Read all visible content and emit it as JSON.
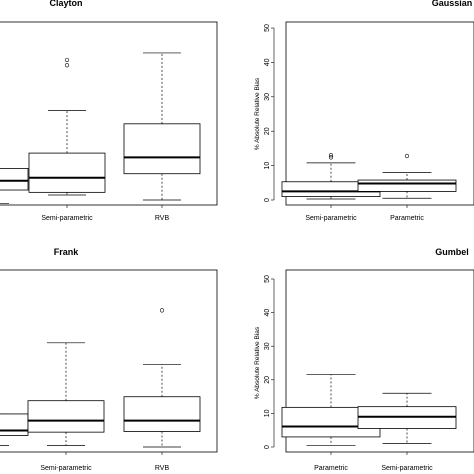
{
  "chart_data": [
    {
      "type": "box",
      "title": "Clayton",
      "ylabel": "",
      "ylim": [
        0,
        55
      ],
      "show_y_axis": false,
      "categories": [
        "",
        "Semi-parametric",
        "RVB"
      ],
      "boxes": [
        {
          "low": 0.5,
          "q1": 4.5,
          "median": 7.3,
          "q3": 11.0,
          "high": 11.0,
          "outliers": []
        },
        {
          "low": 3.0,
          "q1": 3.8,
          "median": 8.2,
          "q3": 15.6,
          "high": 28.4,
          "outliers": [
            42.0,
            43.6
          ]
        },
        {
          "low": 1.5,
          "q1": 9.4,
          "median": 14.3,
          "q3": 24.4,
          "high": 45.7,
          "outliers": []
        }
      ]
    },
    {
      "type": "box",
      "title": "Gaussian",
      "ylabel": "% Absolute Relative Bias",
      "ylim": [
        0,
        50
      ],
      "yticks": [
        0,
        10,
        20,
        30,
        40,
        50
      ],
      "show_y_axis": true,
      "categories": [
        "Semi-parametric",
        "Parametric"
      ],
      "boxes": [
        {
          "low": 0.3,
          "q1": 1.0,
          "median": 2.5,
          "q3": 5.3,
          "high": 10.8,
          "outliers": [
            12.4,
            13.0
          ]
        },
        {
          "low": 0.5,
          "q1": 2.5,
          "median": 4.8,
          "q3": 5.8,
          "high": 8.0,
          "outliers": [
            12.8
          ]
        }
      ]
    },
    {
      "type": "box",
      "title": "Frank",
      "ylabel": "",
      "ylim": [
        0,
        55
      ],
      "show_y_axis": false,
      "categories": [
        "",
        "Semi-parametric",
        "RVB"
      ],
      "boxes": [
        {
          "low": 2.0,
          "q1": 5.0,
          "median": 6.5,
          "q3": 11.5,
          "high": 11.5,
          "outliers": []
        },
        {
          "low": 2.0,
          "q1": 6.0,
          "median": 9.5,
          "q3": 15.5,
          "high": 33.0,
          "outliers": []
        },
        {
          "low": 1.5,
          "q1": 6.2,
          "median": 9.5,
          "q3": 16.7,
          "high": 26.5,
          "outliers": [
            42.8
          ]
        }
      ]
    },
    {
      "type": "box",
      "title": "Gumbel",
      "ylabel": "% Absolute Relative Bias",
      "ylim": [
        0,
        50
      ],
      "yticks": [
        0,
        10,
        20,
        30,
        40,
        50
      ],
      "show_y_axis": true,
      "categories": [
        "Parametric",
        "Semi-parametric"
      ],
      "boxes": [
        {
          "low": 0.5,
          "q1": 3.0,
          "median": 6.1,
          "q3": 11.8,
          "high": 21.6,
          "outliers": []
        },
        {
          "low": 1.0,
          "q1": 5.5,
          "median": 9.0,
          "q3": 12.0,
          "high": 16.0,
          "outliers": []
        }
      ]
    }
  ]
}
